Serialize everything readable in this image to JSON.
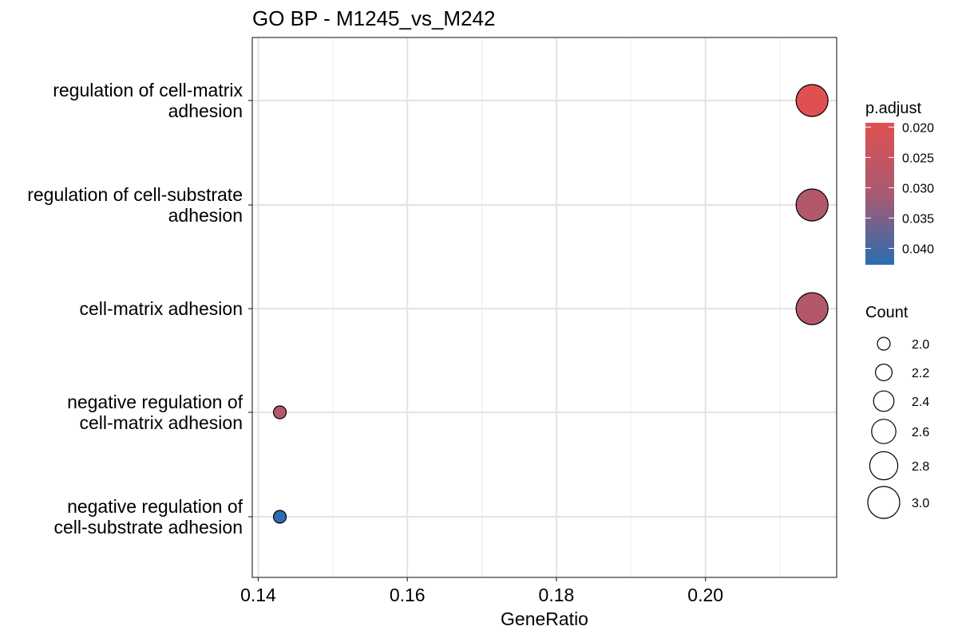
{
  "chart_data": {
    "type": "scatter",
    "title": "GO BP - M1245_vs_M242",
    "xlabel": "GeneRatio",
    "ylabel": "",
    "xlim": [
      0.1392,
      0.2176
    ],
    "x_ticks": [
      "0.14",
      "0.16",
      "0.18",
      "0.20"
    ],
    "x_tick_values": [
      0.14,
      0.16,
      0.18,
      0.2
    ],
    "categories": [
      [
        "regulation of cell-matrix",
        "adhesion"
      ],
      [
        "regulation of cell-substrate",
        "adhesion"
      ],
      [
        "cell-matrix adhesion"
      ],
      [
        "negative regulation of",
        "cell-matrix adhesion"
      ],
      [
        "negative regulation of",
        "cell-substrate adhesion"
      ]
    ],
    "points": [
      {
        "x": 0.2143,
        "count": 3,
        "p_adjust": 0.0193
      },
      {
        "x": 0.2143,
        "count": 3,
        "p_adjust": 0.0287
      },
      {
        "x": 0.2143,
        "count": 3,
        "p_adjust": 0.0287
      },
      {
        "x": 0.1429,
        "count": 2,
        "p_adjust": 0.0287
      },
      {
        "x": 0.1429,
        "count": 2,
        "p_adjust": 0.0427
      }
    ],
    "grid": true,
    "legend_position": "right",
    "color_legend": {
      "title": "p.adjust",
      "ticks": [
        "0.020",
        "0.025",
        "0.030",
        "0.035",
        "0.040"
      ],
      "tick_values": [
        0.02,
        0.025,
        0.03,
        0.035,
        0.04
      ],
      "range": [
        0.0193,
        0.0427
      ],
      "low_color": "#e05050",
      "high_color": "#2b6db0"
    },
    "size_legend": {
      "title": "Count",
      "ticks": [
        "2.0",
        "2.2",
        "2.4",
        "2.6",
        "2.8",
        "3.0"
      ],
      "tick_values": [
        2.0,
        2.2,
        2.4,
        2.6,
        2.8,
        3.0
      ]
    }
  }
}
